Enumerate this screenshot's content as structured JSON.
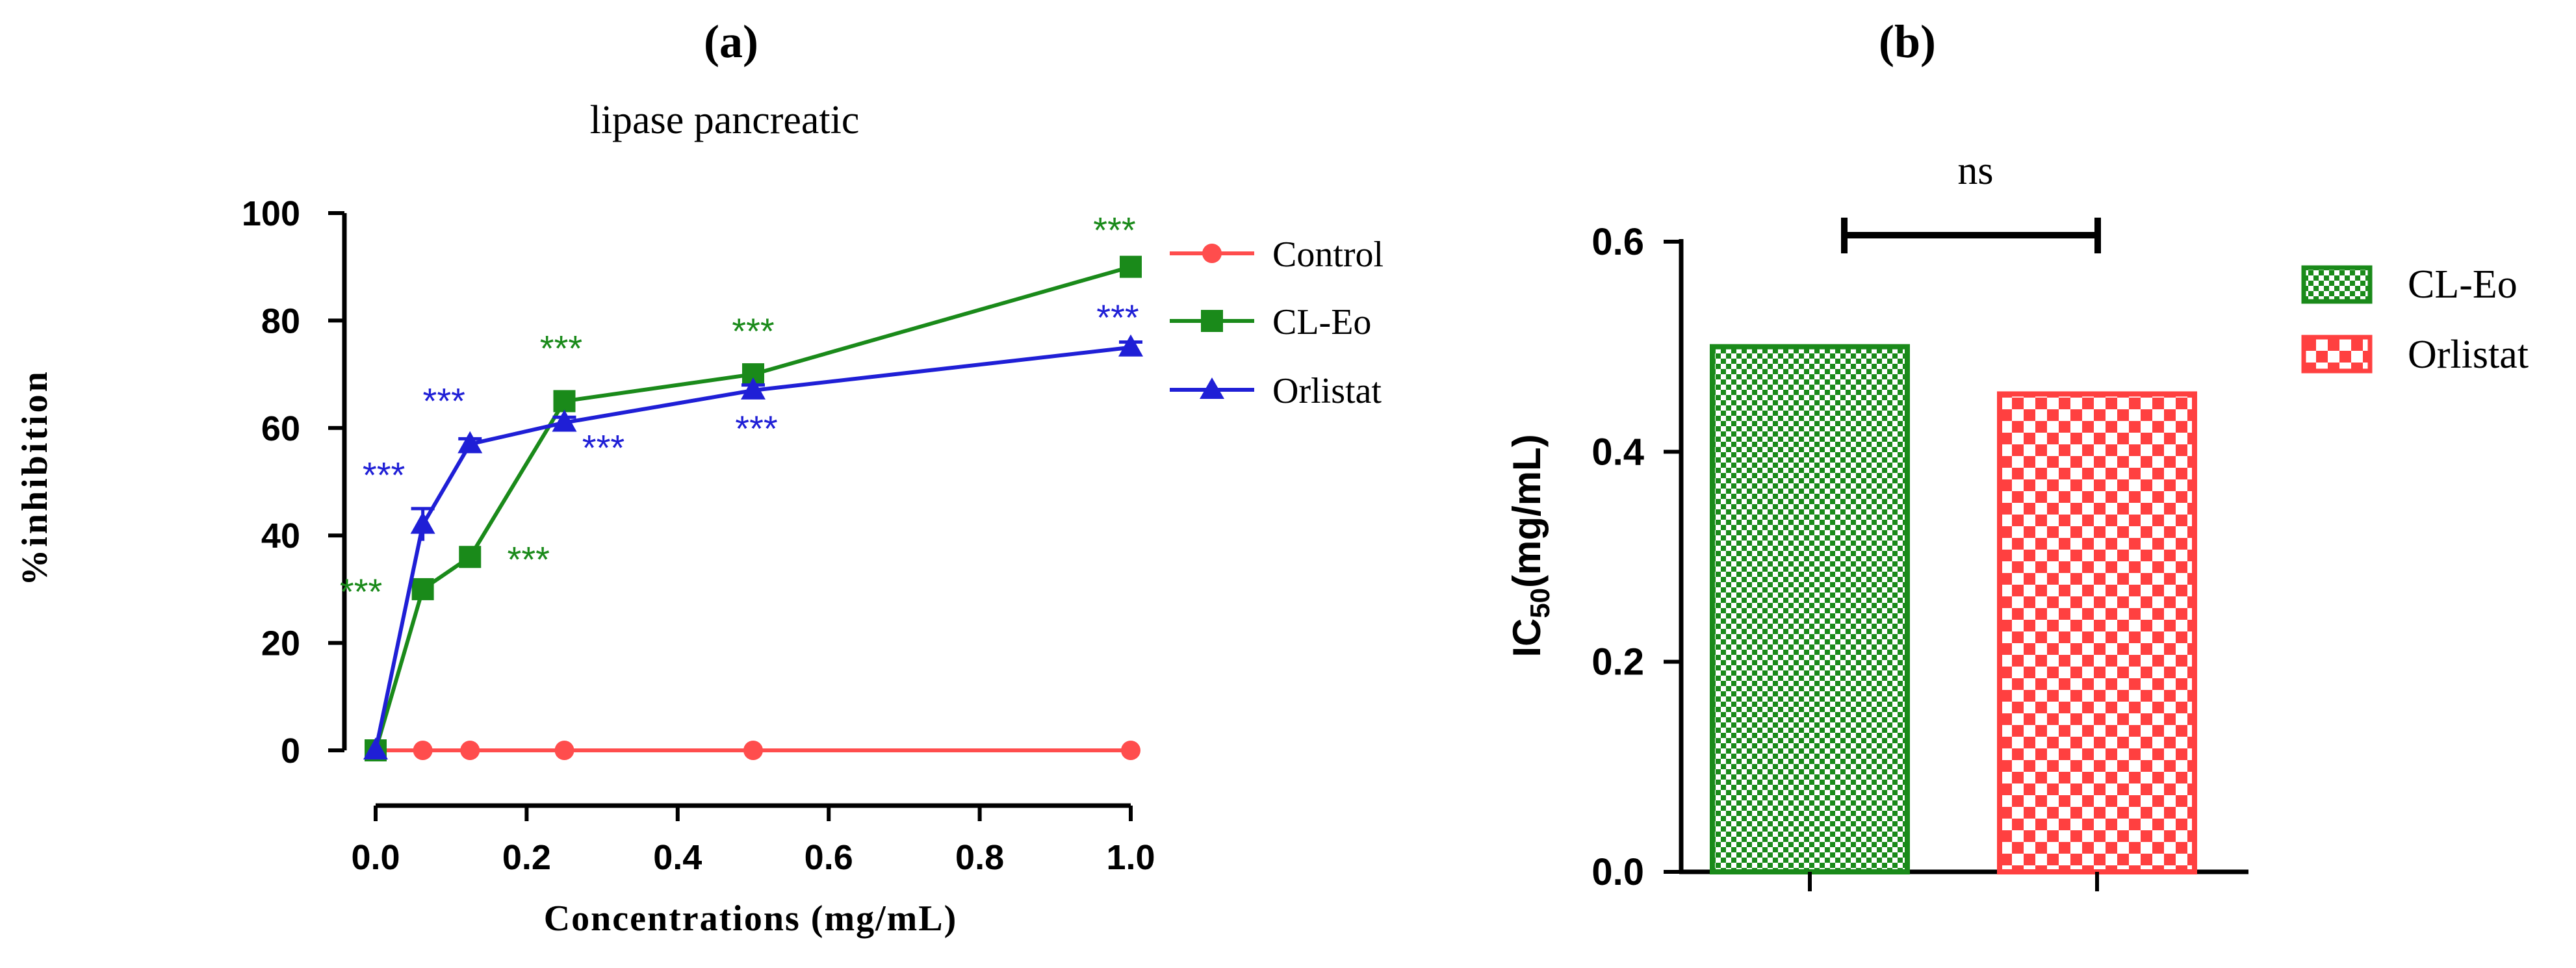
{
  "panel_a": {
    "panel_label": "(a)",
    "title": "lipase pancreatic",
    "xlabel": "Concentrations (mg/mL)",
    "ylabel": "%inhibition",
    "legend": [
      "Control",
      "CL-Eo",
      "Orlistat"
    ]
  },
  "panel_b": {
    "panel_label": "(b)",
    "ylabel_main": "IC",
    "ylabel_sub": "50",
    "ylabel_tail": "(mg/mL)",
    "significance": "ns",
    "legend": [
      "CL-Eo",
      "Orlistat"
    ]
  },
  "chart_data": [
    {
      "type": "line",
      "title": "lipase pancreatic",
      "xlabel": "Concentrations (mg/mL)",
      "ylabel": "%inhibition",
      "xlim": [
        0,
        1
      ],
      "ylim": [
        0,
        100
      ],
      "x_ticks": [
        "0.0",
        "0.2",
        "0.4",
        "0.6",
        "0.8",
        "1.0"
      ],
      "y_ticks": [
        "0",
        "20",
        "40",
        "60",
        "80",
        "100"
      ],
      "legend_position": "right",
      "series": [
        {
          "name": "Control",
          "color": "#ff4d4d",
          "marker": "circle",
          "x": [
            0,
            0.0625,
            0.125,
            0.25,
            0.5,
            1.0
          ],
          "y": [
            0,
            0,
            0,
            0,
            0,
            0
          ],
          "annotations": [
            "",
            "",
            "",
            "",
            "",
            ""
          ]
        },
        {
          "name": "CL-Eo",
          "color": "#1a8a1a",
          "marker": "square",
          "x": [
            0,
            0.0625,
            0.125,
            0.25,
            0.5,
            1.0
          ],
          "y": [
            0,
            30,
            36,
            65,
            70,
            90
          ],
          "annotations": [
            "",
            "***",
            "***",
            "***",
            "***",
            "***"
          ]
        },
        {
          "name": "Orlistat",
          "color": "#1f1fd6",
          "marker": "triangle",
          "x": [
            0,
            0.0625,
            0.125,
            0.25,
            0.5,
            1.0
          ],
          "y": [
            0,
            42,
            57,
            61,
            67,
            75
          ],
          "error": [
            0,
            3,
            1,
            1,
            1,
            1
          ],
          "annotations": [
            "",
            "***",
            "***",
            "***",
            "***",
            "***"
          ]
        }
      ]
    },
    {
      "type": "bar",
      "ylabel": "IC50(mg/mL)",
      "ylim": [
        0,
        0.6
      ],
      "y_ticks": [
        "0.0",
        "0.2",
        "0.4",
        "0.6"
      ],
      "categories": [
        "CL-Eo",
        "Orlistat"
      ],
      "values": [
        0.5,
        0.455
      ],
      "colors": [
        "#1a8a1a",
        "#ff4040"
      ],
      "significance": "ns",
      "legend_position": "right"
    }
  ]
}
